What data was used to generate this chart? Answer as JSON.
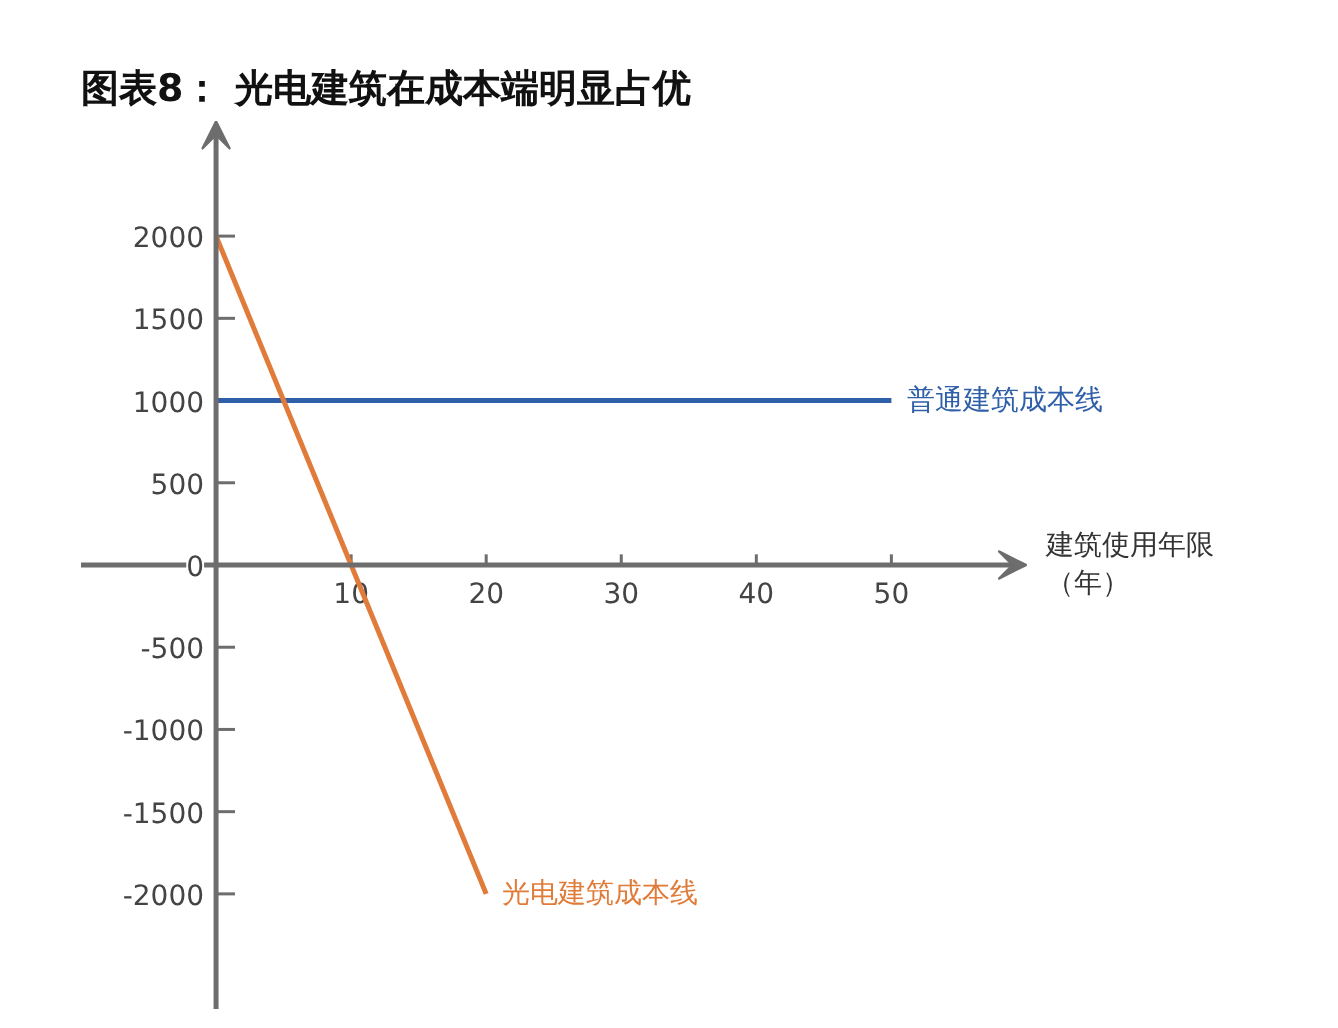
{
  "chart_data": {
    "type": "line",
    "title": "图表8：  光电建筑在成本端明显占优",
    "xlabel": "建筑使用年限（年）",
    "xlim": [
      -10,
      60
    ],
    "ylim": [
      -2700,
      2700
    ],
    "xticks": [
      10,
      20,
      30,
      40,
      50
    ],
    "yticks": [
      -2000,
      -1500,
      -1000,
      -500,
      0,
      500,
      1000,
      1500,
      2000
    ],
    "grid": false,
    "series": [
      {
        "name": "普通建筑成本线",
        "color": "#2e5fa8",
        "x": [
          0,
          50
        ],
        "values": [
          1000,
          1000
        ]
      },
      {
        "name": "光电建筑成本线",
        "color": "#e07b39",
        "x": [
          0,
          20
        ],
        "values": [
          2000,
          -2000
        ]
      }
    ]
  }
}
